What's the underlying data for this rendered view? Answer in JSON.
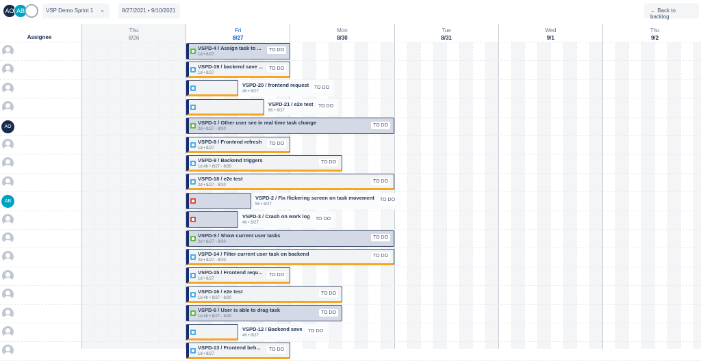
{
  "header": {
    "avatars": [
      {
        "initials": "AO",
        "color": "#172b4d"
      },
      {
        "initials": "AB",
        "color": "#00a3bf"
      },
      {
        "initials": "",
        "color": "#c1c7d0"
      }
    ],
    "sprint_select": "VSP Demo Sprint 1",
    "date_range": "8/27/2021 • 9/10/2021",
    "back_button": "Back to backlog",
    "back_icon": "arrow-left-icon"
  },
  "timeline": {
    "assignee_header": "Assignee",
    "days": [
      {
        "name": "Thu",
        "date": "8/26"
      },
      {
        "name": "Fri",
        "date": "8/27"
      },
      {
        "name": "Mon",
        "date": "8/30"
      },
      {
        "name": "Tue",
        "date": "8/31"
      },
      {
        "name": "Wed",
        "date": "9/1"
      },
      {
        "name": "Thu",
        "date": "9/2"
      }
    ],
    "today": "8/27",
    "status_label": "TO DO",
    "colors": {
      "story": "#63ba3c",
      "task": "#4bade8",
      "bug": "#e5493a",
      "accent": "#f6a623",
      "today": "#0052cc"
    }
  },
  "rows": [
    {
      "assignee": "",
      "key": "VSPD-4",
      "title": "VSPD-4 / Assign task to ...",
      "meta": "1d • 8/27",
      "type": "story",
      "hours": 8,
      "status": "TO DO"
    },
    {
      "assignee": "",
      "key": "VSPD-19",
      "title": "VSPD-19 / backend save ...",
      "meta": "1d • 8/27",
      "type": "task",
      "hours": 8,
      "status": "TO DO"
    },
    {
      "assignee": "",
      "key": "VSPD-20",
      "title": "VSPD-20 / frontend request",
      "meta": "4h • 8/27",
      "type": "task",
      "hours": 4,
      "status": "TO DO"
    },
    {
      "assignee": "",
      "key": "VSPD-21",
      "title": "VSPD-21 / e2e test",
      "meta": "6h • 8/27",
      "type": "task",
      "hours": 6,
      "status": "TO DO"
    },
    {
      "assignee": "AO",
      "key": "VSPD-1",
      "title": "VSPD-1 / Other user see in real time task change",
      "meta": "2d • 8/27 - 8/30",
      "type": "story",
      "hours": 16,
      "status": "TO DO"
    },
    {
      "assignee": "",
      "key": "VSPD-8",
      "title": "VSPD-8 / Frontend refresh",
      "meta": "1d • 8/27",
      "type": "task",
      "hours": 8,
      "status": "TO DO"
    },
    {
      "assignee": "",
      "key": "VSPD-9",
      "title": "VSPD-9 / Backend triggers",
      "meta": "1d 4h • 8/27 - 8/30",
      "type": "task",
      "hours": 12,
      "status": "TO DO"
    },
    {
      "assignee": "",
      "key": "VSPD-18",
      "title": "VSPD-18 / e2e test",
      "meta": "2d • 8/27 - 8/30",
      "type": "task",
      "hours": 16,
      "status": "TO DO"
    },
    {
      "assignee": "AB",
      "key": "VSPD-2",
      "title": "VSPD-2 / Fix flickering screen on task movement",
      "meta": "5h • 8/27",
      "type": "bug",
      "hours": 5,
      "status": "TO DO"
    },
    {
      "assignee": "",
      "key": "VSPD-3",
      "title": "VSPD-3 / Crash on work log",
      "meta": "4h • 8/27",
      "type": "bug",
      "hours": 4,
      "status": "TO DO"
    },
    {
      "assignee": "",
      "key": "VSPD-5",
      "title": "VSPD-5 / Show current user tasks",
      "meta": "2d • 8/27 - 8/30",
      "type": "story",
      "hours": 16,
      "status": "TO DO"
    },
    {
      "assignee": "",
      "key": "VSPD-14",
      "title": "VSPD-14 / Filter current user task on backend",
      "meta": "2d • 8/27 - 8/30",
      "type": "task",
      "hours": 16,
      "status": "TO DO"
    },
    {
      "assignee": "",
      "key": "VSPD-15",
      "title": "VSPD-15 / Frontend requ...",
      "meta": "1d • 8/27",
      "type": "task",
      "hours": 8,
      "status": "TO DO"
    },
    {
      "assignee": "",
      "key": "VSPD-16",
      "title": "VSPD-16 / e2e test",
      "meta": "1d 4h • 8/27 - 8/30",
      "type": "task",
      "hours": 12,
      "status": "TO DO"
    },
    {
      "assignee": "",
      "key": "VSPD-6",
      "title": "VSPD-6 / User is able to drag task",
      "meta": "1d 4h • 8/27 - 8/30",
      "type": "story",
      "hours": 12,
      "status": "TO DO"
    },
    {
      "assignee": "",
      "key": "VSPD-12",
      "title": "VSPD-12 / Backend save",
      "meta": "4h • 8/27",
      "type": "task",
      "hours": 4,
      "status": "TO DO"
    },
    {
      "assignee": "",
      "key": "VSPD-13",
      "title": "VSPD-13 / Frontend beh...",
      "meta": "1d • 8/27",
      "type": "task",
      "hours": 8,
      "status": "TO DO"
    }
  ]
}
